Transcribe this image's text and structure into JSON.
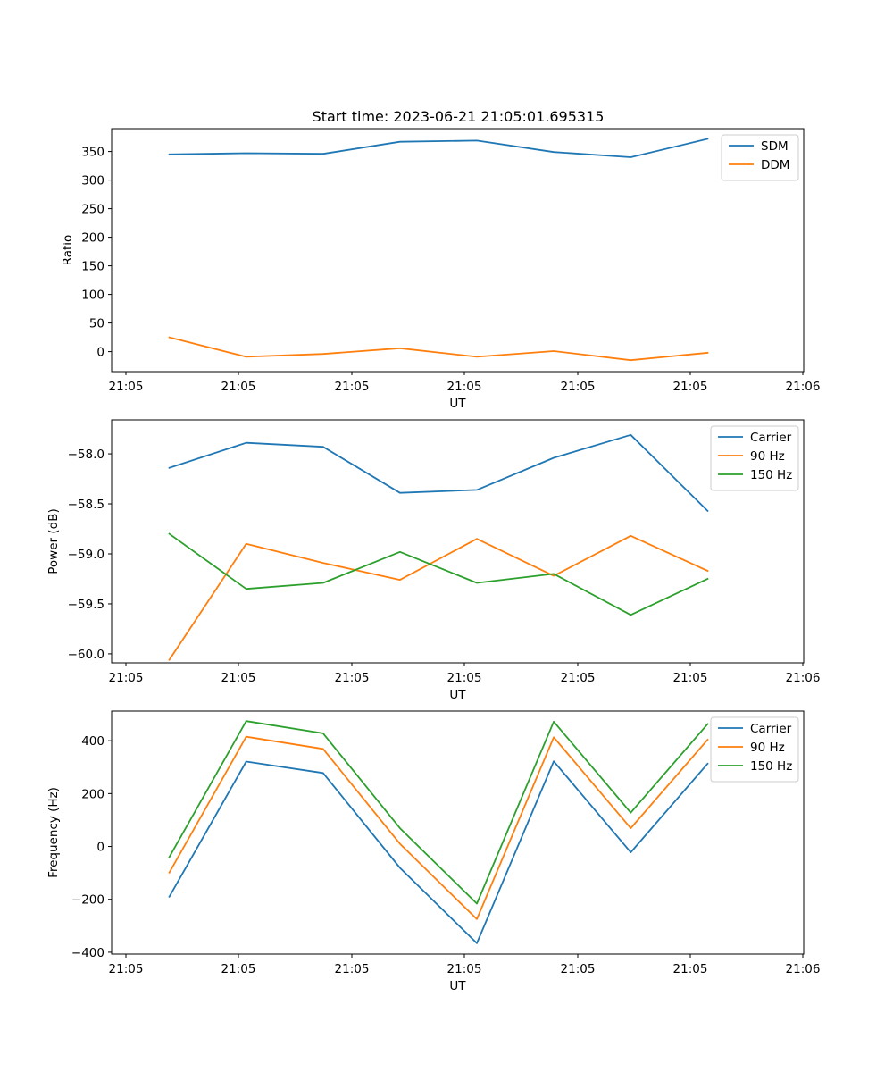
{
  "figure": {
    "title": "Start time: 2023-06-21 21:05:01.695315"
  },
  "chart_data": [
    {
      "type": "line",
      "title": "Start time: 2023-06-21 21:05:01.695315",
      "xlabel": "UT",
      "ylabel": "Ratio",
      "x_tick_labels": [
        "21:05",
        "21:05",
        "21:05",
        "21:05",
        "21:05",
        "21:05",
        "21:06"
      ],
      "y_ticks": [
        0,
        50,
        100,
        150,
        200,
        250,
        300,
        350
      ],
      "ylim": [
        -35,
        390
      ],
      "grid": false,
      "legend_position": "upper right",
      "x": [
        1,
        2,
        3,
        4,
        5,
        6,
        7,
        8
      ],
      "xlim": [
        0.25,
        9.25
      ],
      "series": [
        {
          "name": "SDM",
          "color": "#1f77b4",
          "values": [
            345,
            347,
            346,
            367,
            369,
            349,
            340,
            372
          ]
        },
        {
          "name": "DDM",
          "color": "#ff7f0e",
          "values": [
            25,
            -9,
            -4,
            6,
            -9,
            1,
            -15,
            -2
          ]
        }
      ]
    },
    {
      "type": "line",
      "title": "",
      "xlabel": "UT",
      "ylabel": "Power (dB)",
      "x_tick_labels": [
        "21:05",
        "21:05",
        "21:05",
        "21:05",
        "21:05",
        "21:05",
        "21:06"
      ],
      "y_ticks": [
        -60.0,
        -59.5,
        -59.0,
        -58.5,
        -58.0
      ],
      "y_tick_labels": [
        "−60.0",
        "−59.5",
        "−59.0",
        "−58.5",
        "−58.0"
      ],
      "ylim": [
        -60.09,
        -57.66
      ],
      "grid": false,
      "legend_position": "upper right",
      "x": [
        1,
        2,
        3,
        4,
        5,
        6,
        7,
        8
      ],
      "xlim": [
        0.25,
        9.25
      ],
      "series": [
        {
          "name": "Carrier",
          "color": "#1f77b4",
          "values": [
            -58.14,
            -57.89,
            -57.93,
            -58.39,
            -58.36,
            -58.04,
            -57.81,
            -58.57
          ]
        },
        {
          "name": "90 Hz",
          "color": "#ff7f0e",
          "values": [
            -60.06,
            -58.9,
            -59.09,
            -59.26,
            -58.85,
            -59.22,
            -58.82,
            -59.17
          ]
        },
        {
          "name": "150 Hz",
          "color": "#2ca02c",
          "values": [
            -58.8,
            -59.35,
            -59.29,
            -58.98,
            -59.29,
            -59.2,
            -59.61,
            -59.25
          ]
        }
      ]
    },
    {
      "type": "line",
      "title": "",
      "xlabel": "UT",
      "ylabel": "Frequency (Hz)",
      "x_tick_labels": [
        "21:05",
        "21:05",
        "21:05",
        "21:05",
        "21:05",
        "21:05",
        "21:06"
      ],
      "y_ticks": [
        -400,
        -200,
        0,
        200,
        400
      ],
      "y_tick_labels": [
        "−400",
        "−200",
        "0",
        "200",
        "400"
      ],
      "ylim": [
        -407,
        512
      ],
      "grid": false,
      "legend_position": "upper right",
      "x": [
        1,
        2,
        3,
        4,
        5,
        6,
        7,
        8
      ],
      "xlim": [
        0.25,
        9.25
      ],
      "series": [
        {
          "name": "Carrier",
          "color": "#1f77b4",
          "values": [
            -190,
            321,
            278,
            -81,
            -366,
            322,
            -22,
            313
          ]
        },
        {
          "name": "90 Hz",
          "color": "#ff7f0e",
          "values": [
            -99,
            415,
            369,
            10,
            -275,
            413,
            69,
            404
          ]
        },
        {
          "name": "150 Hz",
          "color": "#2ca02c",
          "values": [
            -40,
            474,
            428,
            69,
            -216,
            472,
            128,
            463
          ]
        }
      ]
    }
  ]
}
